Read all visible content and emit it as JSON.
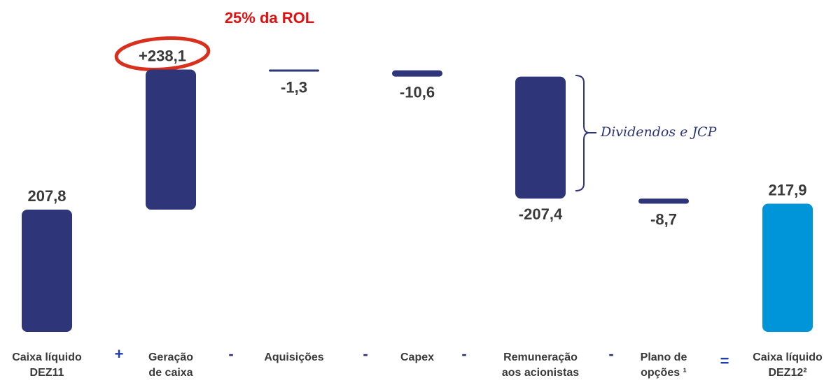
{
  "chart_data": {
    "type": "waterfall",
    "categories": [
      [
        "Caixa líquido",
        "DEZ11"
      ],
      [
        "Geração",
        "de caixa"
      ],
      [
        "Aquisições"
      ],
      [
        "Capex"
      ],
      [
        "Remuneração",
        "aos acionistas"
      ],
      [
        "Plano de",
        "opções ¹"
      ],
      [
        "Caixa líquido",
        "DEZ12²"
      ]
    ],
    "values": [
      207.8,
      238.1,
      -1.3,
      -10.6,
      -207.4,
      -8.7,
      217.9
    ],
    "value_labels": [
      "207,8",
      "+238,1",
      "-1,3",
      "-10,6",
      "-207,4",
      "-8,7",
      "217,9"
    ],
    "measure": [
      "absolute",
      "relative",
      "relative",
      "relative",
      "relative",
      "relative",
      "total"
    ],
    "colors": [
      "#2e3578",
      "#2e3578",
      "#2e3578",
      "#2e3578",
      "#2e3578",
      "#2e3578",
      "#0095d9"
    ],
    "operators": [
      "+",
      "-",
      "-",
      "-",
      "-",
      "="
    ],
    "annotations": [
      "25% da ROL",
      "Dividendos e JCP"
    ]
  }
}
